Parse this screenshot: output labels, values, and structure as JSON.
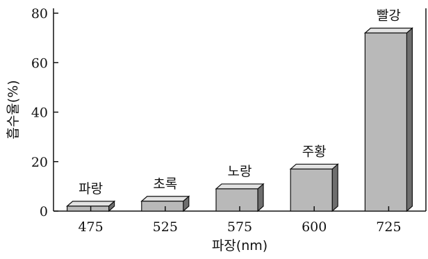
{
  "chart_data": {
    "type": "bar",
    "categories": [
      "475",
      "525",
      "575",
      "600",
      "725"
    ],
    "bar_labels": [
      "파랑",
      "초록",
      "노랑",
      "주황",
      "빨강"
    ],
    "values": [
      2,
      4,
      9,
      17,
      72
    ],
    "ylim": [
      0,
      80
    ],
    "yticks": [
      "0",
      "20",
      "40",
      "60",
      "80"
    ],
    "xlabel": "파장(nm)",
    "ylabel": "흡수율(%)",
    "grid": false,
    "bar_color": "#b9b9b9"
  }
}
